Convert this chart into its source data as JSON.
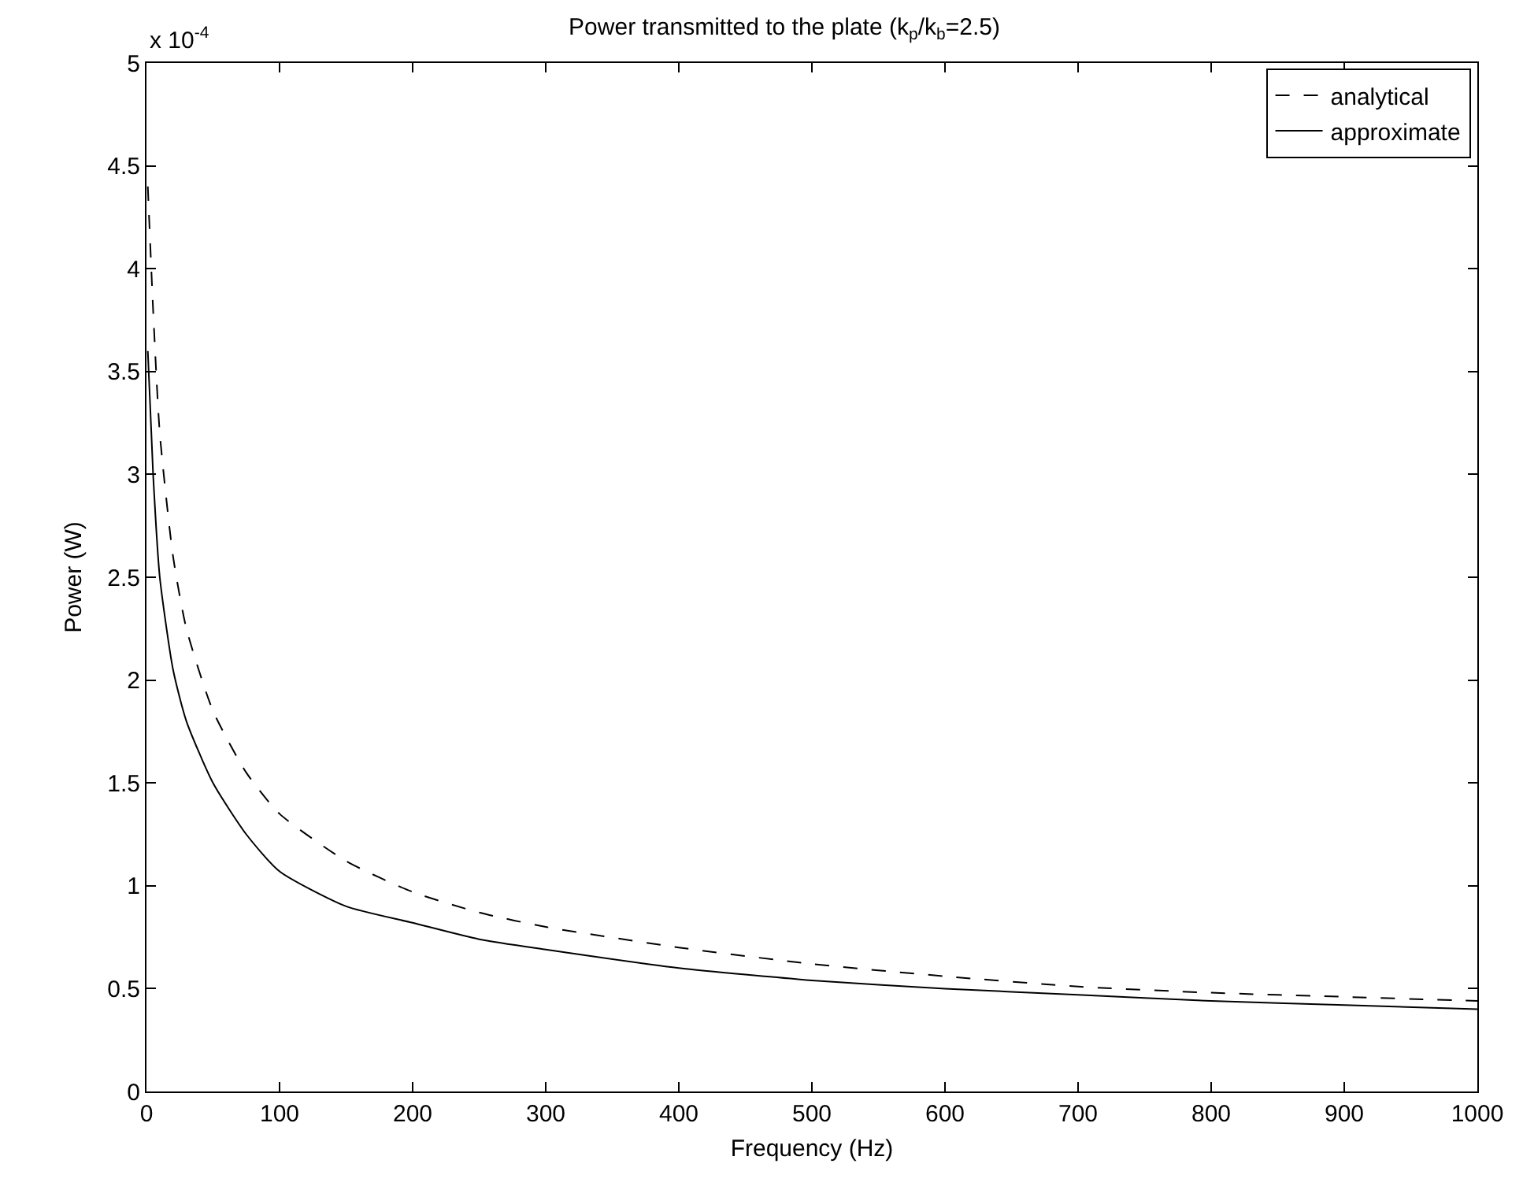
{
  "chart_data": {
    "type": "line",
    "title": "Power transmitted to the plate (k$_{p}$/k$_{b}$=2.5)",
    "xlabel": "Frequency (Hz)",
    "ylabel": "Power (W)",
    "annotations": [
      "x 10$^{-4}$"
    ],
    "x": [
      1,
      5,
      10,
      20,
      30,
      50,
      75,
      100,
      150,
      200,
      250,
      300,
      400,
      500,
      600,
      700,
      800,
      900,
      1000
    ],
    "series": [
      {
        "name": "analytical",
        "color": "#000000",
        "line_style": "dashed",
        "values": [
          4.4,
          3.8,
          3.2,
          2.6,
          2.25,
          1.85,
          1.55,
          1.35,
          1.12,
          0.97,
          0.87,
          0.8,
          0.7,
          0.62,
          0.56,
          0.51,
          0.48,
          0.46,
          0.44
        ]
      },
      {
        "name": "approximate",
        "color": "#000000",
        "line_style": "solid",
        "values": [
          3.6,
          3.0,
          2.5,
          2.05,
          1.8,
          1.5,
          1.25,
          1.07,
          0.9,
          0.82,
          0.74,
          0.69,
          0.6,
          0.54,
          0.5,
          0.47,
          0.44,
          0.42,
          0.4
        ]
      }
    ],
    "xlim": [
      0,
      1000
    ],
    "xticks": [
      0,
      100,
      200,
      300,
      400,
      500,
      600,
      700,
      800,
      900,
      1000
    ],
    "ylim": [
      0,
      5
    ],
    "yticks": [
      0,
      0.5,
      1,
      1.5,
      2,
      2.5,
      3,
      3.5,
      4,
      4.5,
      5
    ],
    "grid": false,
    "legend": "top right",
    "marker": "none"
  }
}
